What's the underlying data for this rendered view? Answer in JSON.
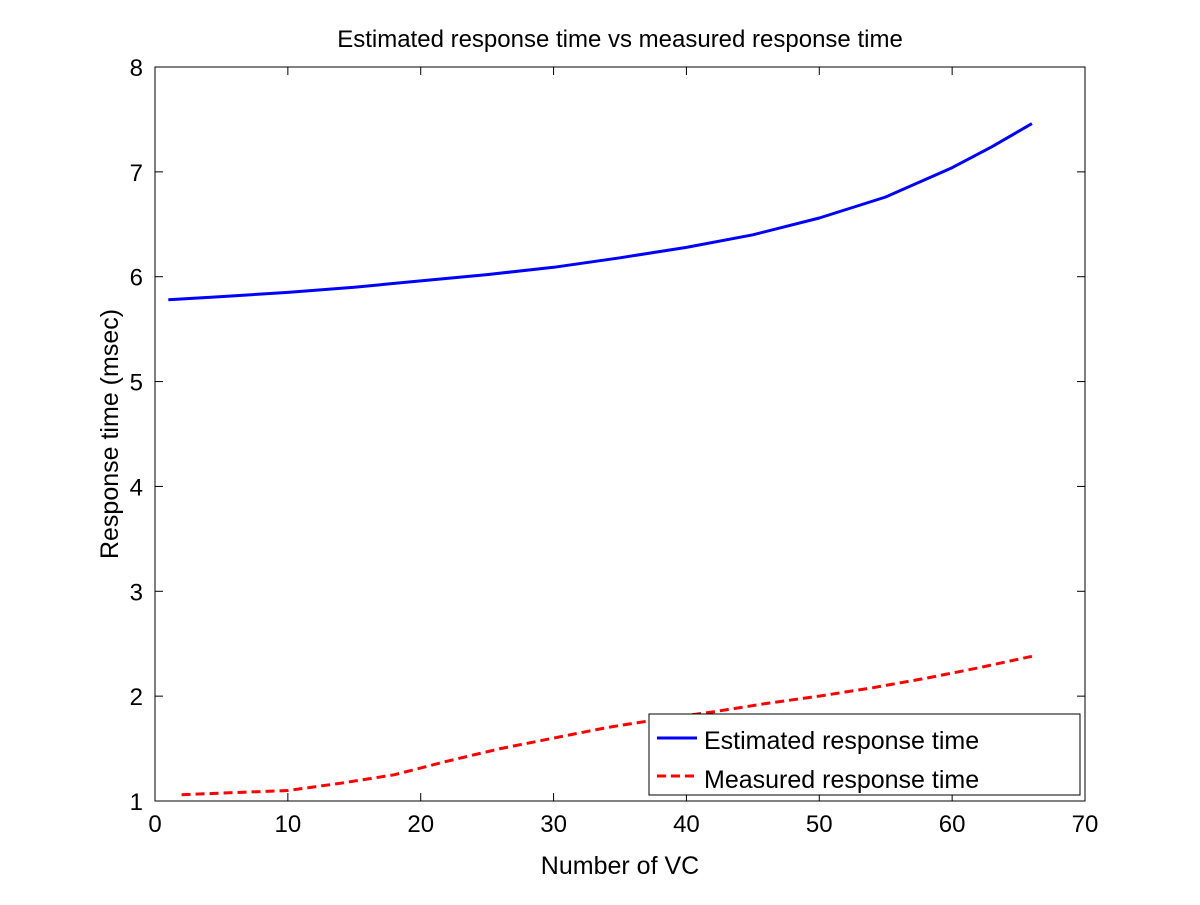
{
  "chart_data": {
    "type": "line",
    "title": "Estimated response time vs measured response time",
    "xlabel": "Number of VC",
    "ylabel": "Response time (msec)",
    "xlim": [
      0,
      70
    ],
    "ylim": [
      1,
      8
    ],
    "xticks": [
      0,
      10,
      20,
      30,
      40,
      50,
      60,
      70
    ],
    "yticks": [
      1,
      2,
      3,
      4,
      5,
      6,
      7,
      8
    ],
    "grid": false,
    "legend_position": "bottom-right",
    "series": [
      {
        "name": "Estimated response time",
        "color": "#0000ff",
        "style": "solid",
        "x": [
          1,
          5,
          10,
          15,
          20,
          25,
          30,
          35,
          40,
          45,
          50,
          55,
          60,
          63,
          66
        ],
        "y": [
          5.78,
          5.81,
          5.85,
          5.9,
          5.96,
          6.02,
          6.09,
          6.18,
          6.28,
          6.4,
          6.56,
          6.76,
          7.04,
          7.24,
          7.46
        ]
      },
      {
        "name": "Measured response time",
        "color": "#ff0000",
        "style": "dashed",
        "x": [
          2,
          6,
          10,
          14,
          18,
          22,
          26,
          30,
          34,
          38,
          42,
          46,
          50,
          54,
          58,
          62,
          66
        ],
        "y": [
          1.06,
          1.08,
          1.1,
          1.17,
          1.25,
          1.38,
          1.5,
          1.6,
          1.7,
          1.78,
          1.85,
          1.93,
          2.0,
          2.08,
          2.17,
          2.27,
          2.38
        ]
      }
    ]
  }
}
